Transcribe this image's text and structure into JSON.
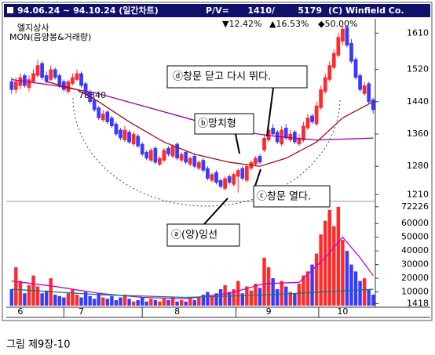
{
  "header": {
    "period": "94.06.24 ~ 94.10.24 (일간차트)",
    "pv_label": "P/V=",
    "pv_price": "1410/",
    "pv_volume": "5179",
    "copyright": "(C) Winfield Co.",
    "stats": [
      "▼12.42%",
      "▲16.53%",
      "◆50.00%"
    ]
  },
  "chart_data": {
    "type": "candlestick",
    "title": "엘지상사",
    "subtitle": "MON(음양봉&거래량)",
    "note": "78840",
    "categories": [
      null,
      null,
      "6",
      null,
      null,
      null,
      null,
      null,
      null,
      null,
      null,
      null,
      null,
      null,
      null,
      null,
      "7",
      null,
      null,
      null,
      null,
      null,
      null,
      null,
      null,
      null,
      null,
      null,
      null,
      null,
      null,
      null,
      null,
      null,
      null,
      null,
      null,
      null,
      "8",
      null,
      null,
      null,
      null,
      null,
      null,
      null,
      null,
      null,
      null,
      null,
      null,
      null,
      null,
      null,
      null,
      null,
      null,
      null,
      null,
      "9",
      null,
      null,
      null,
      null,
      null,
      null,
      null,
      null,
      null,
      null,
      null,
      null,
      null,
      null,
      null,
      null,
      "10",
      null,
      null,
      null,
      null,
      null,
      null,
      null
    ],
    "open": [
      1490,
      1470,
      1480,
      1505,
      1475,
      1490,
      1505,
      1535,
      1505,
      1495,
      1520,
      1505,
      1490,
      1465,
      1485,
      1495,
      1510,
      1485,
      1465,
      1445,
      1425,
      1395,
      1415,
      1400,
      1385,
      1370,
      1345,
      1365,
      1335,
      1355,
      1335,
      1315,
      1295,
      1325,
      1285,
      1295,
      1325,
      1305,
      1335,
      1295,
      1315,
      1285,
      1305,
      1275,
      1295,
      1275,
      1245,
      1265,
      1245,
      1225,
      1255,
      1235,
      1255,
      1275,
      1245,
      1275,
      1285,
      1305,
      1320,
      1345,
      1375,
      1365,
      1335,
      1375,
      1345,
      1365,
      1335,
      1345,
      1375,
      1405,
      1385,
      1425,
      1465,
      1495,
      1525,
      1555,
      1590,
      1625,
      1585,
      1545,
      1505,
      1460,
      1485,
      1445
    ],
    "high": [
      1500,
      1500,
      1510,
      1510,
      1505,
      1520,
      1545,
      1540,
      1515,
      1530,
      1525,
      1510,
      1495,
      1495,
      1510,
      1520,
      1515,
      1490,
      1470,
      1450,
      1430,
      1420,
      1420,
      1405,
      1390,
      1375,
      1380,
      1370,
      1365,
      1360,
      1340,
      1320,
      1325,
      1330,
      1305,
      1325,
      1330,
      1335,
      1340,
      1315,
      1320,
      1305,
      1310,
      1295,
      1300,
      1280,
      1265,
      1270,
      1250,
      1255,
      1260,
      1265,
      1275,
      1280,
      1285,
      1295,
      1305,
      1310,
      1360,
      1380,
      1385,
      1370,
      1380,
      1385,
      1370,
      1370,
      1360,
      1390,
      1410,
      1410,
      1440,
      1480,
      1510,
      1540,
      1570,
      1610,
      1630,
      1630,
      1595,
      1550,
      1510,
      1490,
      1490,
      1450
    ],
    "low": [
      1460,
      1460,
      1470,
      1475,
      1465,
      1485,
      1500,
      1495,
      1485,
      1490,
      1495,
      1475,
      1465,
      1460,
      1480,
      1490,
      1475,
      1455,
      1435,
      1415,
      1395,
      1390,
      1385,
      1375,
      1355,
      1345,
      1340,
      1335,
      1330,
      1325,
      1305,
      1295,
      1290,
      1285,
      1280,
      1290,
      1305,
      1300,
      1295,
      1290,
      1285,
      1280,
      1275,
      1270,
      1265,
      1245,
      1240,
      1235,
      1225,
      1220,
      1235,
      1230,
      1215,
      1245,
      1240,
      1270,
      1280,
      1285,
      1315,
      1340,
      1355,
      1335,
      1330,
      1345,
      1340,
      1335,
      1330,
      1340,
      1370,
      1385,
      1380,
      1420,
      1460,
      1490,
      1520,
      1550,
      1580,
      1575,
      1535,
      1495,
      1465,
      1455,
      1435,
      1410
    ],
    "close": [
      1470,
      1490,
      1500,
      1480,
      1495,
      1510,
      1530,
      1500,
      1490,
      1520,
      1500,
      1480,
      1470,
      1490,
      1500,
      1510,
      1480,
      1460,
      1440,
      1420,
      1400,
      1410,
      1390,
      1380,
      1360,
      1350,
      1370,
      1340,
      1360,
      1330,
      1310,
      1300,
      1320,
      1290,
      1300,
      1320,
      1310,
      1330,
      1300,
      1310,
      1290,
      1300,
      1280,
      1290,
      1270,
      1250,
      1260,
      1240,
      1230,
      1250,
      1240,
      1260,
      1270,
      1250,
      1280,
      1290,
      1300,
      1290,
      1350,
      1370,
      1360,
      1340,
      1370,
      1350,
      1360,
      1340,
      1350,
      1380,
      1400,
      1390,
      1430,
      1470,
      1500,
      1530,
      1560,
      1600,
      1620,
      1580,
      1540,
      1500,
      1470,
      1480,
      1440,
      1420
    ],
    "volume": [
      12000,
      28000,
      18000,
      9000,
      15000,
      22000,
      14000,
      9000,
      11000,
      20000,
      8000,
      7000,
      6000,
      9000,
      12000,
      8000,
      6000,
      10000,
      7000,
      5000,
      9000,
      6000,
      5000,
      7000,
      4000,
      6000,
      8000,
      5000,
      3000,
      4000,
      6000,
      3000,
      5000,
      4000,
      3000,
      5000,
      4000,
      6000,
      3000,
      4000,
      3000,
      5000,
      4000,
      6000,
      8000,
      10000,
      7000,
      9000,
      12000,
      15000,
      10000,
      12000,
      18000,
      9000,
      14000,
      11000,
      16000,
      13000,
      35000,
      28000,
      20000,
      12000,
      18000,
      14000,
      10000,
      9000,
      16000,
      22000,
      25000,
      30000,
      38000,
      52000,
      62000,
      70000,
      58000,
      72226,
      48000,
      40000,
      30000,
      25000,
      18000,
      20000,
      12000,
      8000
    ],
    "up_color": "#ff2a2a",
    "down_color": "#3a3aff",
    "ylim": [
      1195,
      1630
    ],
    "yticks": [
      1610,
      1520,
      1440,
      1360,
      1280,
      1210
    ],
    "y2lim": [
      0,
      75000
    ],
    "y2ticks": [
      72226,
      60000,
      50000,
      40000,
      30000,
      20000,
      10000,
      1418
    ],
    "lines": [
      {
        "color": "#9900aa",
        "x": [
          0,
          10,
          20,
          30,
          40,
          50,
          60,
          70,
          83
        ],
        "values": [
          1495,
          1480,
          1460,
          1430,
          1400,
          1370,
          1355,
          1345,
          1350
        ]
      },
      {
        "color": "#a01010",
        "x": [
          8,
          15,
          20,
          27,
          35,
          42,
          50,
          57,
          63,
          70,
          76,
          83
        ],
        "values": [
          1490,
          1470,
          1440,
          1390,
          1340,
          1310,
          1290,
          1280,
          1300,
          1340,
          1400,
          1440
        ]
      }
    ],
    "volume_lines": [
      {
        "color": "#cc00cc",
        "x": [
          0,
          10,
          20,
          30,
          40,
          50,
          58,
          66,
          72,
          76,
          80,
          83
        ],
        "values": [
          18000,
          14000,
          9000,
          6000,
          5000,
          9000,
          16000,
          17000,
          35000,
          50000,
          35000,
          22000
        ]
      },
      {
        "color": "#008080",
        "x": [
          0,
          20,
          40,
          60,
          83
        ],
        "values": [
          12000,
          8000,
          6000,
          8000,
          12000
        ]
      }
    ],
    "annotations": [
      "ⓓ창문 닫고 다시 뛰다.",
      "ⓑ망치형",
      "ⓒ창문 열다.",
      "ⓐ(양)잉선"
    ]
  },
  "caption": "그림 제9장-10"
}
